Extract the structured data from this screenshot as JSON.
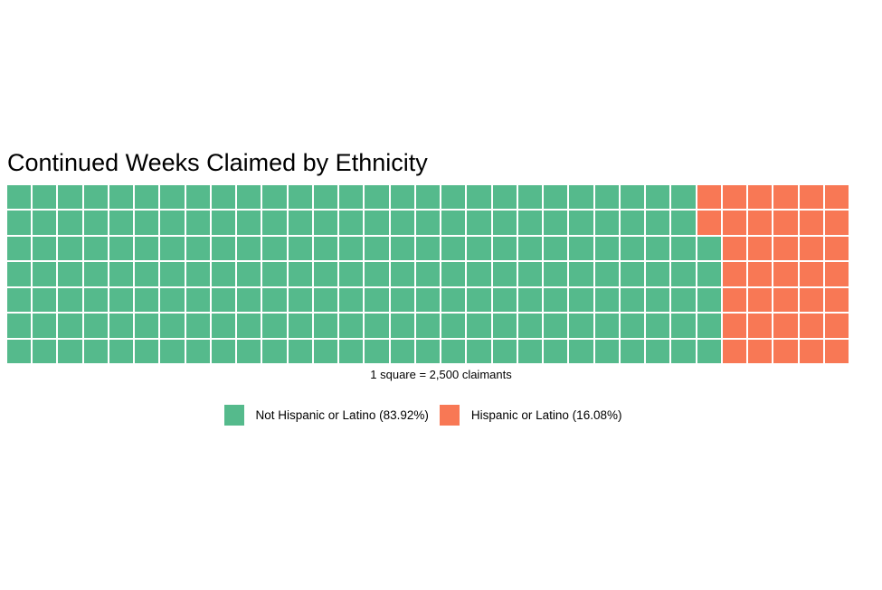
{
  "page": {
    "background": "#ffffff"
  },
  "title": "Continued Weeks Claimed by Ethnicity",
  "caption": "1 square = 2,500 claimants",
  "legend": {
    "items": [
      {
        "label": "Not Hispanic or Latino (83.92%)",
        "color": "#55BA8C"
      },
      {
        "label": "Hispanic or Latino (16.08%)",
        "color": "#F87855"
      }
    ]
  },
  "chart_data": {
    "type": "waffle",
    "title": "Continued Weeks Claimed by Ethnicity",
    "unit_caption": "1 square = 2,500 claimants",
    "square_value": 2500,
    "square_value_unit": "claimants",
    "grid": {
      "rows": 7,
      "cols": 33,
      "total_squares": 231,
      "gap_color": "#ffffff",
      "fill_order": "column-major, bottom-to-top, left-to-right"
    },
    "series": [
      {
        "name": "Not Hispanic or Latino",
        "percent": 83.92,
        "squares": 194,
        "color": "#55BA8C"
      },
      {
        "name": "Hispanic or Latino",
        "percent": 16.08,
        "squares": 37,
        "color": "#F87855"
      }
    ],
    "legend_position": "bottom-center"
  }
}
